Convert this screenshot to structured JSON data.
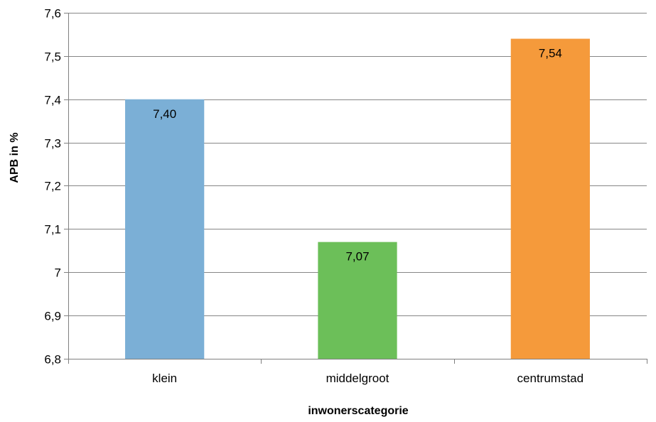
{
  "chart_data": {
    "type": "bar",
    "categories": [
      "klein",
      "middelgroot",
      "centrumstad"
    ],
    "values": [
      7.4,
      7.07,
      7.54
    ],
    "data_labels": [
      "7,40",
      "7,07",
      "7,54"
    ],
    "bar_colors": [
      "#7bafd6",
      "#6cbf59",
      "#f59a3b"
    ],
    "title": "",
    "xlabel": "inwonerscategorie",
    "ylabel": "APB in %",
    "ylim": [
      6.8,
      7.6
    ],
    "yticks": [
      6.8,
      6.9,
      7.0,
      7.1,
      7.2,
      7.3,
      7.4,
      7.5,
      7.6
    ],
    "ytick_labels": [
      "6,8",
      "6,9",
      "7",
      "7,1",
      "7,2",
      "7,3",
      "7,4",
      "7,5",
      "7,6"
    ],
    "grid": true,
    "legend": "none"
  }
}
